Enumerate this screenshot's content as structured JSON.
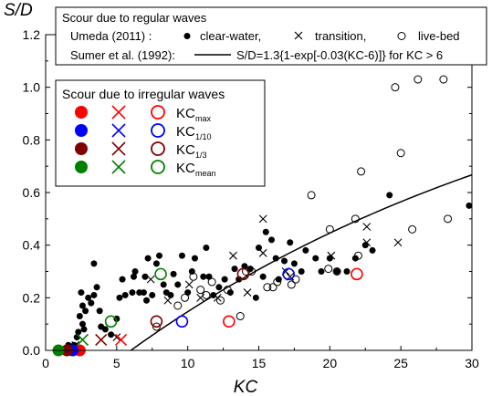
{
  "chart_data": {
    "type": "scatter",
    "ylabel": "S/D",
    "xlabel": "KC",
    "xlim": [
      0,
      30
    ],
    "ylim": [
      0,
      1.2
    ],
    "x_ticks": [
      0,
      5,
      10,
      15,
      20,
      25,
      30
    ],
    "x_tick_labels": [
      "0",
      "5",
      "10",
      "15",
      "20",
      "25",
      "30"
    ],
    "y_ticks": [
      0.0,
      0.2,
      0.4,
      0.6,
      0.8,
      1.0,
      1.2
    ],
    "y_tick_labels": [
      "0.0",
      "0.2",
      "0.4",
      "0.6",
      "0.8",
      "1.0",
      "1.2"
    ],
    "legend_regular": {
      "title": "Scour due to regular waves",
      "umeda_label": "Umeda (2011) :",
      "entries": [
        "clear-water,",
        "transition,",
        "live-bed"
      ],
      "sumer_label": "Sumer et al. (1992):",
      "sumer_formula": "S/D=1.3{1-exp[-0.03(KC-6)]} for KC > 6"
    },
    "legend_irregular": {
      "title": "Scour due to irregular waves",
      "rows": [
        {
          "kc": "KC",
          "sub": "max",
          "color": "#ff0000"
        },
        {
          "kc": "KC",
          "sub": "1/10",
          "color": "#0000ff"
        },
        {
          "kc": "KC",
          "sub": "1/3",
          "color": "#800000"
        },
        {
          "kc": "KC",
          "sub": "mean",
          "color": "#008000"
        }
      ]
    },
    "curve": {
      "name": "S/D=1.3{1-exp[-0.03(KC-6)]}",
      "a": 1.3,
      "b": 0.03,
      "kc0": 6
    },
    "series": [
      {
        "name": "clear-water",
        "marker": "filled-circle",
        "color": "#000000",
        "points": [
          [
            1.4,
            0.0
          ],
          [
            1.7,
            0.0
          ],
          [
            1.6,
            0.02
          ],
          [
            2.0,
            0.02
          ],
          [
            2.2,
            0.05
          ],
          [
            2.3,
            0.07
          ],
          [
            2.6,
            0.1
          ],
          [
            2.7,
            0.08
          ],
          [
            2.4,
            0.13
          ],
          [
            2.6,
            0.17
          ],
          [
            2.8,
            0.15
          ],
          [
            2.5,
            0.22
          ],
          [
            3.0,
            0.2
          ],
          [
            3.2,
            0.18
          ],
          [
            3.4,
            0.21
          ],
          [
            3.6,
            0.24
          ],
          [
            3.4,
            0.33
          ],
          [
            3.8,
            0.15
          ],
          [
            3.9,
            0.09
          ],
          [
            4.2,
            0.08
          ],
          [
            4.6,
            0.06
          ],
          [
            5.0,
            0.12
          ],
          [
            5.2,
            0.2
          ],
          [
            5.6,
            0.21
          ],
          [
            5.4,
            0.27
          ],
          [
            6.1,
            0.22
          ],
          [
            6.2,
            0.28
          ],
          [
            6.3,
            0.3
          ],
          [
            6.6,
            0.22
          ],
          [
            6.9,
            0.22
          ],
          [
            7.1,
            0.19
          ],
          [
            7.0,
            0.28
          ],
          [
            7.2,
            0.35
          ],
          [
            7.5,
            0.21
          ],
          [
            7.8,
            0.33
          ],
          [
            8.0,
            0.36
          ],
          [
            8.3,
            0.25
          ],
          [
            8.5,
            0.22
          ],
          [
            8.8,
            0.21
          ],
          [
            9.0,
            0.29
          ],
          [
            9.3,
            0.25
          ],
          [
            9.6,
            0.36
          ],
          [
            10.0,
            0.22
          ],
          [
            10.3,
            0.3
          ],
          [
            10.5,
            0.35
          ],
          [
            11.1,
            0.28
          ],
          [
            11.3,
            0.39
          ],
          [
            11.5,
            0.28
          ],
          [
            11.8,
            0.21
          ],
          [
            12.2,
            0.24
          ],
          [
            12.6,
            0.27
          ],
          [
            13.0,
            0.22
          ],
          [
            13.3,
            0.31
          ],
          [
            13.6,
            0.27
          ],
          [
            14.0,
            0.32
          ],
          [
            14.4,
            0.31
          ],
          [
            14.8,
            0.2
          ],
          [
            15.0,
            0.39
          ],
          [
            15.3,
            0.28
          ],
          [
            15.5,
            0.45
          ],
          [
            15.9,
            0.42
          ],
          [
            16.2,
            0.35
          ],
          [
            16.4,
            0.27
          ],
          [
            16.8,
            0.34
          ],
          [
            17.2,
            0.41
          ],
          [
            17.5,
            0.33
          ],
          [
            18.0,
            0.3
          ],
          [
            18.3,
            0.38
          ],
          [
            19.0,
            0.35
          ],
          [
            19.4,
            0.3
          ],
          [
            20.0,
            0.35
          ],
          [
            20.5,
            0.3
          ],
          [
            21.2,
            0.3
          ],
          [
            21.8,
            0.35
          ],
          [
            22.5,
            0.4
          ],
          [
            23.0,
            0.38
          ],
          [
            24.2,
            0.59
          ],
          [
            29.8,
            0.55
          ]
        ]
      },
      {
        "name": "transition",
        "marker": "x",
        "color": "#000000",
        "points": [
          [
            2.1,
            0.02
          ],
          [
            5.0,
            0.05
          ],
          [
            7.4,
            0.27
          ],
          [
            8.6,
            0.19
          ],
          [
            10.1,
            0.25
          ],
          [
            10.9,
            0.2
          ],
          [
            12.1,
            0.2
          ],
          [
            13.2,
            0.36
          ],
          [
            14.2,
            0.22
          ],
          [
            15.3,
            0.37
          ],
          [
            15.3,
            0.5
          ],
          [
            16.9,
            0.3
          ],
          [
            17.2,
            0.28
          ],
          [
            20.1,
            0.36
          ],
          [
            22.6,
            0.41
          ],
          [
            22.6,
            0.47
          ],
          [
            24.8,
            0.41
          ]
        ]
      },
      {
        "name": "live-bed",
        "marker": "open-circle",
        "color": "#000000",
        "points": [
          [
            7.8,
            0.09
          ],
          [
            9.3,
            0.17
          ],
          [
            9.8,
            0.2
          ],
          [
            10.4,
            0.28
          ],
          [
            10.9,
            0.23
          ],
          [
            11.3,
            0.21
          ],
          [
            11.7,
            0.26
          ],
          [
            12.3,
            0.19
          ],
          [
            12.8,
            0.23
          ],
          [
            13.7,
            0.13
          ],
          [
            14.1,
            0.3
          ],
          [
            14.5,
            0.3
          ],
          [
            15.6,
            0.24
          ],
          [
            16.0,
            0.24
          ],
          [
            16.3,
            0.26
          ],
          [
            17.3,
            0.25
          ],
          [
            17.6,
            0.27
          ],
          [
            18.7,
            0.59
          ],
          [
            19.9,
            0.31
          ],
          [
            20.0,
            0.46
          ],
          [
            20.5,
            0.3
          ],
          [
            21.8,
            0.5
          ],
          [
            22.0,
            0.36
          ],
          [
            22.2,
            0.68
          ],
          [
            25.0,
            0.75
          ],
          [
            25.8,
            0.46
          ],
          [
            24.6,
            1.0
          ],
          [
            26.2,
            1.03
          ],
          [
            28.0,
            1.03
          ],
          [
            28.3,
            0.5
          ]
        ]
      },
      {
        "name": "KCmax",
        "marker": "colored-set",
        "color": "#ff0000",
        "filled": [
          [
            2.4,
            0.0
          ]
        ],
        "cross": [
          [
            5.3,
            0.04
          ]
        ],
        "open": [
          [
            12.9,
            0.11
          ],
          [
            21.9,
            0.29
          ]
        ]
      },
      {
        "name": "KC1/10",
        "marker": "colored-set",
        "color": "#0000ff",
        "filled": [
          [
            1.9,
            0.0
          ]
        ],
        "cross": [],
        "open": [
          [
            9.6,
            0.11
          ],
          [
            17.1,
            0.29
          ]
        ]
      },
      {
        "name": "KC1/3",
        "marker": "colored-set",
        "color": "#800000",
        "filled": [
          [
            1.5,
            0.0
          ]
        ],
        "cross": [
          [
            3.9,
            0.04
          ]
        ],
        "open": [
          [
            7.8,
            0.11
          ],
          [
            13.9,
            0.29
          ]
        ]
      },
      {
        "name": "KCmean",
        "marker": "colored-set",
        "color": "#008000",
        "filled": [
          [
            0.9,
            0.0
          ]
        ],
        "cross": [
          [
            2.6,
            0.04
          ]
        ],
        "open": [
          [
            4.6,
            0.11
          ],
          [
            8.1,
            0.29
          ]
        ]
      }
    ]
  }
}
